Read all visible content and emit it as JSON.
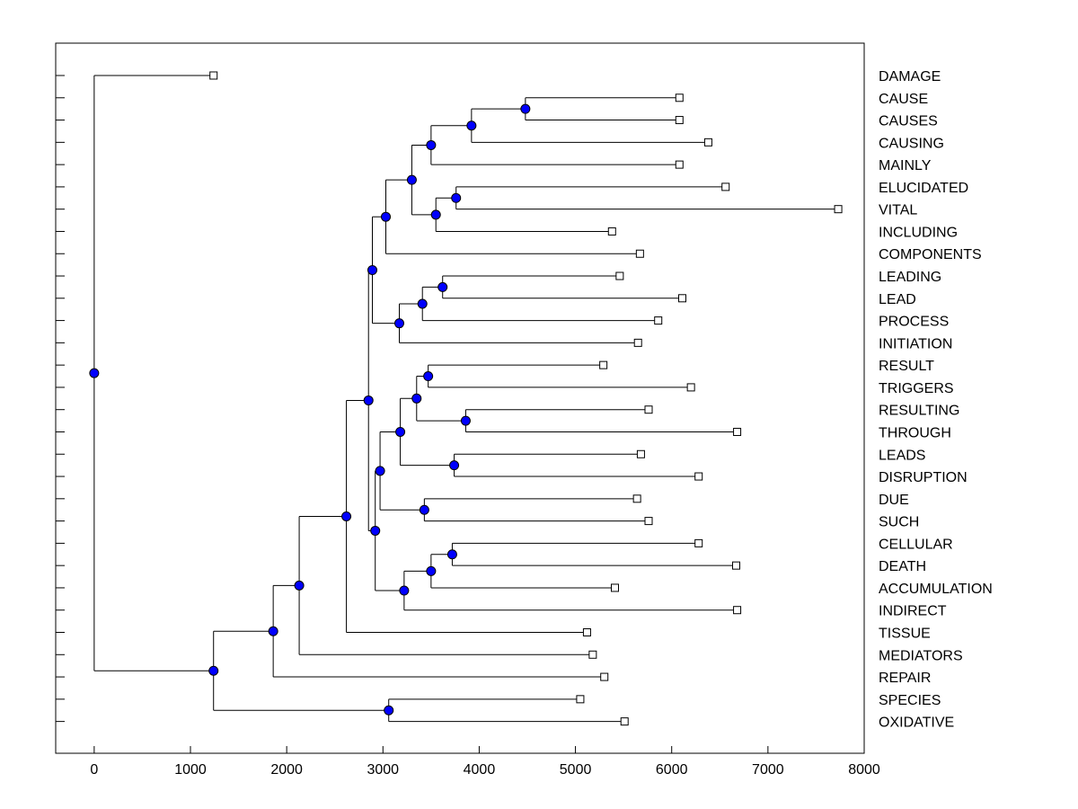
{
  "chart_data": {
    "type": "dendrogram",
    "orientation": "root-left, leaves-right",
    "xlim": [
      -400,
      8000
    ],
    "xticks": [
      0,
      1000,
      2000,
      3000,
      4000,
      5000,
      6000,
      7000,
      8000
    ],
    "xtick_labels": [
      "0",
      "1000",
      "2000",
      "3000",
      "4000",
      "5000",
      "6000",
      "7000",
      "8000"
    ],
    "leaves": [
      {
        "label": "DAMAGE",
        "x": 1240
      },
      {
        "label": "CAUSE",
        "x": 6080
      },
      {
        "label": "CAUSES",
        "x": 6080
      },
      {
        "label": "CAUSING",
        "x": 6380
      },
      {
        "label": "MAINLY",
        "x": 6080
      },
      {
        "label": "ELUCIDATED",
        "x": 6560
      },
      {
        "label": "VITAL",
        "x": 7730
      },
      {
        "label": "INCLUDING",
        "x": 5380
      },
      {
        "label": "COMPONENTS",
        "x": 5670
      },
      {
        "label": "LEADING",
        "x": 5460
      },
      {
        "label": "LEAD",
        "x": 6110
      },
      {
        "label": "PROCESS",
        "x": 5860
      },
      {
        "label": "INITIATION",
        "x": 5650
      },
      {
        "label": "RESULT",
        "x": 5290
      },
      {
        "label": "TRIGGERS",
        "x": 6200
      },
      {
        "label": "RESULTING",
        "x": 5760
      },
      {
        "label": "THROUGH",
        "x": 6680
      },
      {
        "label": "LEADS",
        "x": 5680
      },
      {
        "label": "DISRUPTION",
        "x": 6280
      },
      {
        "label": "DUE",
        "x": 5640
      },
      {
        "label": "SUCH",
        "x": 5760
      },
      {
        "label": "CELLULAR",
        "x": 6280
      },
      {
        "label": "DEATH",
        "x": 6670
      },
      {
        "label": "ACCUMULATION",
        "x": 5410
      },
      {
        "label": "INDIRECT",
        "x": 6680
      },
      {
        "label": "TISSUE",
        "x": 5120
      },
      {
        "label": "MEDIATORS",
        "x": 5180
      },
      {
        "label": "REPAIR",
        "x": 5300
      },
      {
        "label": "SPECIES",
        "x": 5050
      },
      {
        "label": "OXIDATIVE",
        "x": 5510
      }
    ],
    "nodes": [
      {
        "id": "n1",
        "x": 4480,
        "children": [
          "L:CAUSE",
          "L:CAUSES"
        ]
      },
      {
        "id": "n2",
        "x": 3920,
        "children": [
          "n1",
          "L:CAUSING"
        ]
      },
      {
        "id": "n3",
        "x": 3500,
        "children": [
          "n2",
          "L:MAINLY"
        ]
      },
      {
        "id": "n4",
        "x": 3760,
        "children": [
          "L:ELUCIDATED",
          "L:VITAL"
        ]
      },
      {
        "id": "n5",
        "x": 3550,
        "children": [
          "n4",
          "L:INCLUDING"
        ]
      },
      {
        "id": "n6",
        "x": 3300,
        "children": [
          "n3",
          "n5"
        ]
      },
      {
        "id": "n7",
        "x": 3030,
        "children": [
          "n6",
          "L:COMPONENTS"
        ]
      },
      {
        "id": "n8",
        "x": 3620,
        "children": [
          "L:LEADING",
          "L:LEAD"
        ]
      },
      {
        "id": "n9",
        "x": 3410,
        "children": [
          "n8",
          "L:PROCESS"
        ]
      },
      {
        "id": "n10",
        "x": 3170,
        "children": [
          "n9",
          "L:INITIATION"
        ]
      },
      {
        "id": "n11",
        "x": 2890,
        "children": [
          "n7",
          "n10"
        ]
      },
      {
        "id": "n12",
        "x": 3470,
        "children": [
          "L:RESULT",
          "L:TRIGGERS"
        ]
      },
      {
        "id": "n13",
        "x": 3860,
        "children": [
          "L:RESULTING",
          "L:THROUGH"
        ]
      },
      {
        "id": "n14",
        "x": 3350,
        "children": [
          "n12",
          "n13"
        ]
      },
      {
        "id": "n15",
        "x": 3740,
        "children": [
          "L:LEADS",
          "L:DISRUPTION"
        ]
      },
      {
        "id": "n16",
        "x": 3180,
        "children": [
          "n14",
          "n15"
        ]
      },
      {
        "id": "n17",
        "x": 3430,
        "children": [
          "L:DUE",
          "L:SUCH"
        ]
      },
      {
        "id": "n18",
        "x": 2970,
        "children": [
          "n16",
          "n17"
        ]
      },
      {
        "id": "n19",
        "x": 3720,
        "children": [
          "L:CELLULAR",
          "L:DEATH"
        ]
      },
      {
        "id": "n20",
        "x": 3500,
        "children": [
          "n19",
          "L:ACCUMULATION"
        ]
      },
      {
        "id": "n21",
        "x": 3220,
        "children": [
          "n20",
          "L:INDIRECT"
        ]
      },
      {
        "id": "n22",
        "x": 2920,
        "children": [
          "n18",
          "n21"
        ]
      },
      {
        "id": "n23",
        "x": 2850,
        "children": [
          "n11",
          "n22"
        ]
      },
      {
        "id": "n24",
        "x": 2620,
        "children": [
          "n23",
          "L:TISSUE"
        ]
      },
      {
        "id": "n25",
        "x": 2130,
        "children": [
          "n24",
          "L:MEDIATORS"
        ]
      },
      {
        "id": "n26",
        "x": 1860,
        "children": [
          "n25",
          "L:REPAIR"
        ]
      },
      {
        "id": "n27",
        "x": 3060,
        "children": [
          "L:SPECIES",
          "L:OXIDATIVE"
        ]
      },
      {
        "id": "n28",
        "x": 1240,
        "children": [
          "n26",
          "n27"
        ]
      },
      {
        "id": "root",
        "x": 0,
        "children": [
          "L:DAMAGE",
          "n28"
        ]
      }
    ],
    "colors": {
      "internal_node": "#0000ff",
      "line": "#000000",
      "leaf_marker": "#ffffff"
    }
  }
}
